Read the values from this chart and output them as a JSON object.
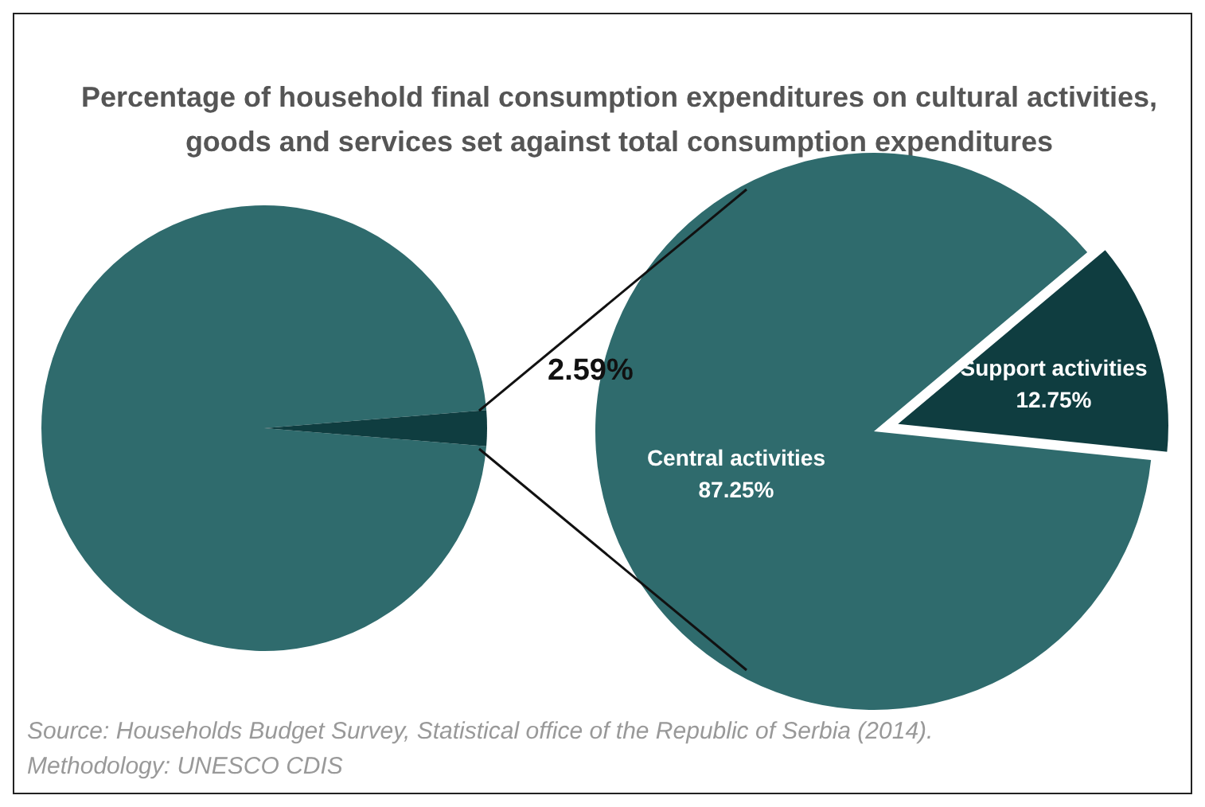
{
  "chart_data": [
    {
      "type": "pie",
      "title": "Percentage of household final consumption expenditures on cultural activities, goods and services set against total consumption expenditures",
      "categories": [
        null,
        null
      ],
      "values": [
        97.41,
        2.59
      ],
      "colors": [
        "#2f6b6d",
        "#0f3d40"
      ],
      "value_labels": [
        null,
        "2.59%"
      ],
      "annotations": [
        "Source: Households Budget Survey, Statistical office of the Republic of Serbia (2014).",
        "Methodology: UNESCO CDIS"
      ]
    },
    {
      "type": "pie",
      "categories": [
        "Central activities",
        "Support activities"
      ],
      "values": [
        87.25,
        12.75
      ],
      "colors": [
        "#2f6b6d",
        "#0f3d40"
      ],
      "value_labels": [
        "87.25%",
        "12.75%"
      ]
    }
  ]
}
